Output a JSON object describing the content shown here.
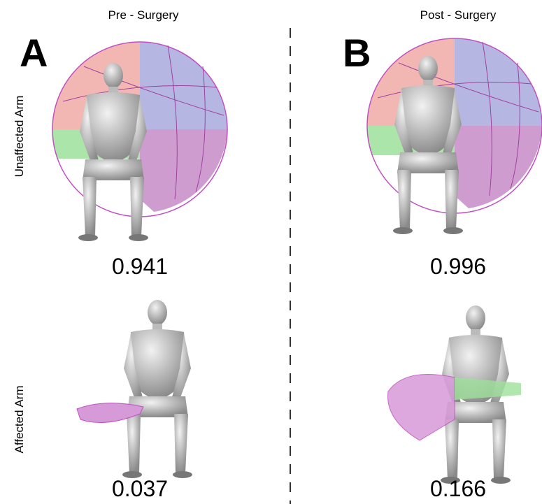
{
  "columns": [
    {
      "title": "Pre - Surgery",
      "panel": "A"
    },
    {
      "title": "Post - Surgery",
      "panel": "B"
    }
  ],
  "rows": [
    {
      "label": "Unaffected Arm",
      "scores": [
        "0.941",
        "0.996"
      ]
    },
    {
      "label": "Affected Arm",
      "scores": [
        "0.037",
        "0.166"
      ]
    }
  ]
}
